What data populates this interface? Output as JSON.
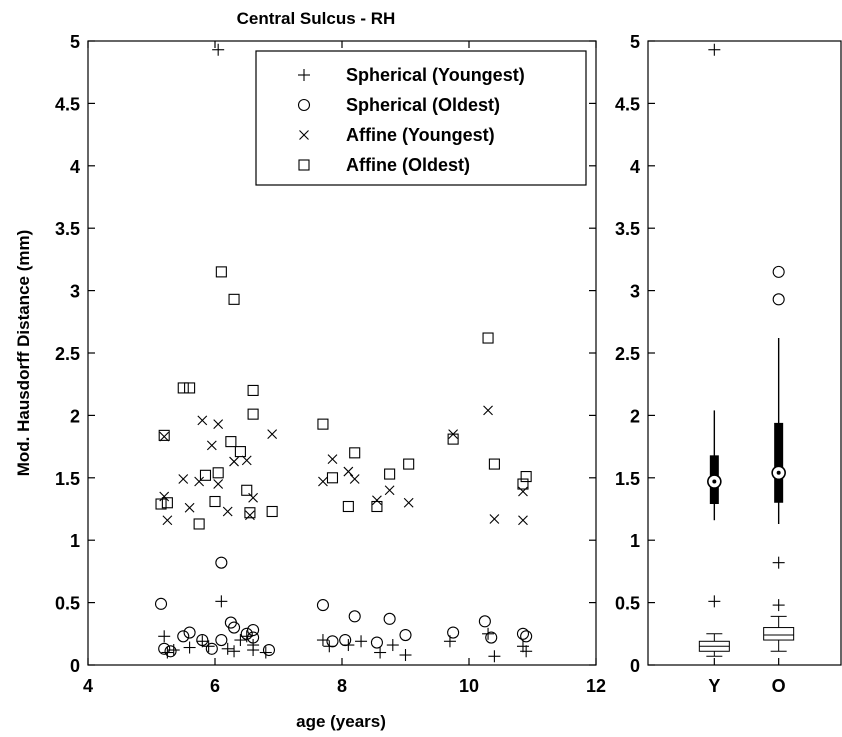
{
  "chart_data": [
    {
      "type": "scatter",
      "title": "Central Sulcus - RH",
      "xlabel": "age (years)",
      "ylabel": "Mod. Hausdorff Distance (mm)",
      "xlim": [
        4,
        12
      ],
      "ylim": [
        0,
        5
      ],
      "x_ticks": [
        "4",
        "6",
        "8",
        "10",
        "12"
      ],
      "y_ticks": [
        "0",
        "0.5",
        "1",
        "1.5",
        "2",
        "2.5",
        "3",
        "3.5",
        "4",
        "4.5",
        "5"
      ],
      "grid": false,
      "legend_position": "top-right",
      "series": [
        {
          "name": "Spherical (Youngest)",
          "marker": "plus",
          "points": [
            [
              5.2,
              0.23
            ],
            [
              5.25,
              0.1
            ],
            [
              5.35,
              0.12
            ],
            [
              5.6,
              0.14
            ],
            [
              5.8,
              0.19
            ],
            [
              5.9,
              0.15
            ],
            [
              6.05,
              4.93
            ],
            [
              6.1,
              0.51
            ],
            [
              6.2,
              0.13
            ],
            [
              6.3,
              0.11
            ],
            [
              6.4,
              0.2
            ],
            [
              6.5,
              0.23
            ],
            [
              6.6,
              0.16
            ],
            [
              6.6,
              0.12
            ],
            [
              6.8,
              0.1
            ],
            [
              7.7,
              0.2
            ],
            [
              7.8,
              0.15
            ],
            [
              8.1,
              0.16
            ],
            [
              8.3,
              0.19
            ],
            [
              8.6,
              0.1
            ],
            [
              8.8,
              0.16
            ],
            [
              9.0,
              0.08
            ],
            [
              9.7,
              0.19
            ],
            [
              10.3,
              0.25
            ],
            [
              10.4,
              0.07
            ],
            [
              10.85,
              0.15
            ],
            [
              10.9,
              0.11
            ]
          ]
        },
        {
          "name": "Spherical (Oldest)",
          "marker": "circle",
          "points": [
            [
              5.15,
              0.49
            ],
            [
              5.2,
              0.13
            ],
            [
              5.3,
              0.11
            ],
            [
              5.5,
              0.23
            ],
            [
              5.6,
              0.26
            ],
            [
              5.8,
              0.2
            ],
            [
              5.95,
              0.13
            ],
            [
              6.1,
              0.82
            ],
            [
              6.1,
              0.2
            ],
            [
              6.25,
              0.34
            ],
            [
              6.3,
              0.3
            ],
            [
              6.5,
              0.25
            ],
            [
              6.6,
              0.28
            ],
            [
              6.6,
              0.22
            ],
            [
              6.85,
              0.12
            ],
            [
              7.7,
              0.48
            ],
            [
              7.85,
              0.19
            ],
            [
              8.05,
              0.2
            ],
            [
              8.2,
              0.39
            ],
            [
              8.55,
              0.18
            ],
            [
              8.75,
              0.37
            ],
            [
              9.0,
              0.24
            ],
            [
              9.75,
              0.26
            ],
            [
              10.25,
              0.35
            ],
            [
              10.35,
              0.22
            ],
            [
              10.85,
              0.25
            ],
            [
              10.9,
              0.23
            ]
          ]
        },
        {
          "name": "Affine (Youngest)",
          "marker": "x",
          "points": [
            [
              5.2,
              1.83
            ],
            [
              5.2,
              1.35
            ],
            [
              5.25,
              1.16
            ],
            [
              5.5,
              1.49
            ],
            [
              5.6,
              1.26
            ],
            [
              5.75,
              1.47
            ],
            [
              5.8,
              1.96
            ],
            [
              5.95,
              1.76
            ],
            [
              6.05,
              1.93
            ],
            [
              6.05,
              1.45
            ],
            [
              6.2,
              1.23
            ],
            [
              6.3,
              1.63
            ],
            [
              6.5,
              1.64
            ],
            [
              6.55,
              1.2
            ],
            [
              6.6,
              1.34
            ],
            [
              6.9,
              1.85
            ],
            [
              7.7,
              1.47
            ],
            [
              7.85,
              1.65
            ],
            [
              8.1,
              1.55
            ],
            [
              8.2,
              1.49
            ],
            [
              8.55,
              1.32
            ],
            [
              8.75,
              1.4
            ],
            [
              9.05,
              1.3
            ],
            [
              9.75,
              1.85
            ],
            [
              10.3,
              2.04
            ],
            [
              10.4,
              1.17
            ],
            [
              10.85,
              1.39
            ],
            [
              10.85,
              1.16
            ]
          ]
        },
        {
          "name": "Affine (Oldest)",
          "marker": "square",
          "points": [
            [
              5.15,
              1.29
            ],
            [
              5.2,
              1.84
            ],
            [
              5.25,
              1.3
            ],
            [
              5.5,
              2.22
            ],
            [
              5.6,
              2.22
            ],
            [
              5.75,
              1.13
            ],
            [
              5.85,
              1.52
            ],
            [
              6.0,
              1.31
            ],
            [
              6.05,
              1.54
            ],
            [
              6.1,
              3.15
            ],
            [
              6.25,
              1.79
            ],
            [
              6.3,
              2.93
            ],
            [
              6.4,
              1.71
            ],
            [
              6.5,
              1.4
            ],
            [
              6.55,
              1.22
            ],
            [
              6.6,
              2.2
            ],
            [
              6.6,
              2.01
            ],
            [
              6.9,
              1.23
            ],
            [
              7.7,
              1.93
            ],
            [
              7.85,
              1.5
            ],
            [
              8.1,
              1.27
            ],
            [
              8.2,
              1.7
            ],
            [
              8.55,
              1.27
            ],
            [
              8.75,
              1.53
            ],
            [
              9.05,
              1.61
            ],
            [
              9.75,
              1.81
            ],
            [
              10.3,
              2.62
            ],
            [
              10.4,
              1.61
            ],
            [
              10.85,
              1.45
            ],
            [
              10.9,
              1.51
            ]
          ]
        }
      ]
    },
    {
      "type": "boxplot",
      "ylim": [
        0,
        5
      ],
      "y_ticks": [
        "0",
        "0.5",
        "1",
        "1.5",
        "2",
        "2.5",
        "3",
        "3.5",
        "4",
        "4.5",
        "5"
      ],
      "categories": [
        "Y",
        "O"
      ],
      "boxes": [
        {
          "group": "Y",
          "style": "thin",
          "q1": 0.11,
          "median": 0.15,
          "q3": 0.19,
          "whisker_low": 0.07,
          "whisker_high": 0.25,
          "outliers": [
            4.93,
            0.51
          ],
          "outlier_marker": "plus"
        },
        {
          "group": "O",
          "style": "thin",
          "q1": 0.2,
          "median": 0.24,
          "q3": 0.3,
          "whisker_low": 0.11,
          "whisker_high": 0.39,
          "outliers": [
            0.82,
            0.48
          ],
          "outlier_marker": "plus"
        },
        {
          "group": "Y",
          "style": "thick",
          "q1": 1.29,
          "median": 1.47,
          "q3": 1.68,
          "whisker_low": 1.16,
          "whisker_high": 2.04,
          "outliers": [],
          "outlier_marker": "circle"
        },
        {
          "group": "O",
          "style": "thick",
          "q1": 1.3,
          "median": 1.54,
          "q3": 1.94,
          "whisker_low": 1.13,
          "whisker_high": 2.62,
          "outliers": [
            3.15,
            2.93
          ],
          "outlier_marker": "circle"
        }
      ]
    }
  ]
}
